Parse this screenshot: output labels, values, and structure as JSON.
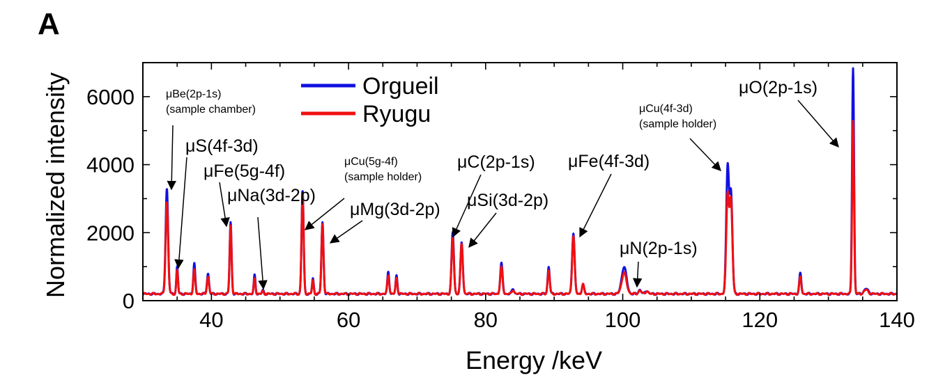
{
  "panel_label": "A",
  "colors": {
    "orgueil": "#1010e0",
    "ryugu": "#f01010",
    "axis": "#000000"
  },
  "chart_data": {
    "type": "line",
    "xlabel": "Energy /keV",
    "ylabel": "Normalized intensity",
    "xlim": [
      30,
      140
    ],
    "ylim": [
      0,
      7000
    ],
    "xticks": [
      40,
      60,
      80,
      100,
      120,
      140
    ],
    "yticks": [
      0,
      2000,
      4000,
      6000
    ],
    "grid": false,
    "legend_position": "top-left",
    "baseline": 200,
    "series": [
      {
        "name": "Orgueil",
        "peaks": [
          [
            33.5,
            3100,
            0.18
          ],
          [
            35.0,
            800,
            0.12
          ],
          [
            37.5,
            900,
            0.14
          ],
          [
            39.5,
            600,
            0.15
          ],
          [
            42.8,
            2100,
            0.14
          ],
          [
            46.3,
            550,
            0.12
          ],
          [
            47.5,
            100,
            0.12
          ],
          [
            53.3,
            3050,
            0.15
          ],
          [
            54.8,
            450,
            0.12
          ],
          [
            56.2,
            2100,
            0.15
          ],
          [
            65.8,
            640,
            0.14
          ],
          [
            67.0,
            530,
            0.13
          ],
          [
            75.2,
            1800,
            0.17
          ],
          [
            76.5,
            1500,
            0.17
          ],
          [
            82.3,
            900,
            0.17
          ],
          [
            84.0,
            150,
            0.16
          ],
          [
            89.2,
            800,
            0.15
          ],
          [
            92.8,
            1800,
            0.18
          ],
          [
            94.2,
            300,
            0.15
          ],
          [
            100.2,
            800,
            0.35
          ],
          [
            102.5,
            120,
            0.2
          ],
          [
            103.5,
            100,
            0.2
          ],
          [
            115.3,
            3700,
            0.2
          ],
          [
            115.8,
            2900,
            0.2
          ],
          [
            125.9,
            600,
            0.15
          ],
          [
            133.6,
            6650,
            0.14
          ],
          [
            135.5,
            150,
            0.3
          ]
        ]
      },
      {
        "name": "Ryugu",
        "peaks": [
          [
            33.5,
            2700,
            0.18
          ],
          [
            35.0,
            700,
            0.12
          ],
          [
            37.5,
            700,
            0.14
          ],
          [
            39.5,
            500,
            0.15
          ],
          [
            42.8,
            2000,
            0.14
          ],
          [
            46.3,
            450,
            0.12
          ],
          [
            47.5,
            80,
            0.12
          ],
          [
            53.3,
            2950,
            0.15
          ],
          [
            54.8,
            400,
            0.12
          ],
          [
            56.2,
            2050,
            0.15
          ],
          [
            65.8,
            560,
            0.14
          ],
          [
            67.0,
            470,
            0.13
          ],
          [
            75.2,
            1650,
            0.17
          ],
          [
            76.5,
            1480,
            0.17
          ],
          [
            82.3,
            780,
            0.17
          ],
          [
            84.0,
            120,
            0.16
          ],
          [
            89.2,
            700,
            0.15
          ],
          [
            92.8,
            1700,
            0.18
          ],
          [
            94.2,
            280,
            0.15
          ],
          [
            100.2,
            620,
            0.35
          ],
          [
            102.5,
            100,
            0.2
          ],
          [
            103.5,
            80,
            0.2
          ],
          [
            115.3,
            2900,
            0.2
          ],
          [
            115.8,
            2700,
            0.2
          ],
          [
            125.9,
            500,
            0.15
          ],
          [
            133.6,
            5100,
            0.14
          ],
          [
            135.5,
            120,
            0.3
          ]
        ]
      }
    ],
    "annotations": [
      {
        "line1": "μBe(2p-1s)",
        "line2": "(sample chamber)",
        "small": true
      },
      {
        "line1": "μS(4f-3d)",
        "small": false
      },
      {
        "line1": "μFe(5g-4f)",
        "small": false
      },
      {
        "line1": "μNa(3d-2p)",
        "small": false
      },
      {
        "line1": "μCu(5g-4f)",
        "line2": "(sample holder)",
        "small": true
      },
      {
        "line1": "μMg(3d-2p)",
        "small": false
      },
      {
        "line1": "μC(2p-1s)",
        "small": false
      },
      {
        "line1": "μSi(3d-2p)",
        "small": false
      },
      {
        "line1": "μFe(4f-3d)",
        "small": false
      },
      {
        "line1": "μN(2p-1s)",
        "small": false
      },
      {
        "line1": "μCu(4f-3d)",
        "line2": "(sample holder)",
        "small": true
      },
      {
        "line1": "μO(2p-1s)",
        "small": false
      }
    ]
  }
}
